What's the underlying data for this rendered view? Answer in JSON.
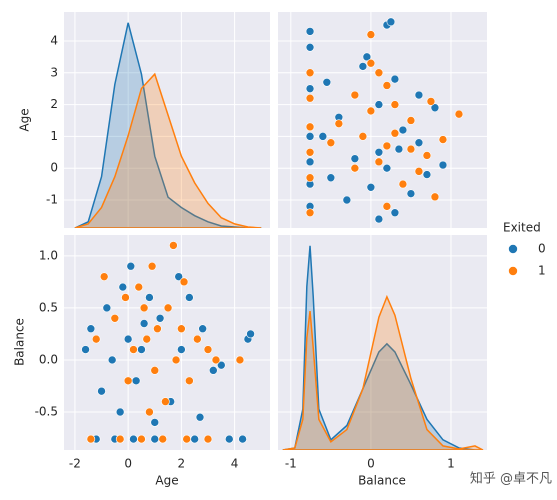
{
  "chart_data": {
    "type": "pairplot",
    "vars": [
      "Age",
      "Balance"
    ],
    "legend_title": "Exited",
    "series": [
      {
        "name": "0",
        "color": "#1f77b4",
        "age": [
          -0.5,
          0.2,
          1.0,
          -1.2,
          2.5,
          3.8,
          4.3,
          0.0,
          -0.8,
          0.5,
          1.2,
          -1.4,
          0.3,
          -0.2,
          2.0,
          2.8,
          3.2,
          4.5,
          -1.0,
          0.8,
          1.6,
          -0.6,
          0.1,
          2.3,
          3.5,
          -1.6,
          1.0,
          0.6,
          -0.3,
          1.9,
          4.6,
          2.7
        ],
        "balance": [
          -0.76,
          -0.76,
          -0.76,
          -0.76,
          -0.76,
          -0.76,
          -0.76,
          0.2,
          0.5,
          0.1,
          0.4,
          0.3,
          -0.2,
          0.7,
          0.1,
          0.3,
          -0.1,
          0.2,
          -0.3,
          0.6,
          -0.4,
          0.0,
          0.9,
          0.6,
          -0.05,
          0.1,
          -0.6,
          0.35,
          -0.5,
          0.8,
          0.25,
          -0.55
        ]
      },
      {
        "name": "1",
        "color": "#ff7f0e",
        "age": [
          -0.3,
          0.5,
          1.3,
          2.2,
          3.0,
          -1.4,
          0.7,
          1.5,
          0.2,
          -0.5,
          2.0,
          1.0,
          0.4,
          1.8,
          2.6,
          -0.9,
          0.9,
          1.4,
          0.0,
          3.0,
          -1.2,
          2.3,
          1.7,
          0.6,
          3.3,
          -0.1,
          1.1,
          4.2,
          0.8,
          2.1
        ],
        "balance": [
          -0.76,
          -0.76,
          -0.76,
          -0.76,
          -0.76,
          -0.76,
          0.2,
          0.5,
          0.1,
          0.4,
          0.3,
          -0.1,
          0.7,
          0.0,
          0.2,
          0.8,
          0.9,
          -0.4,
          -0.2,
          0.1,
          0.2,
          -0.2,
          1.1,
          0.5,
          0.0,
          0.6,
          0.3,
          0.0,
          -0.5,
          0.75
        ]
      }
    ],
    "age_lim": [
      -2.41,
      5.33
    ],
    "age_ylim": [
      -1.88,
      4.91
    ],
    "age_xticks": [
      -2,
      0,
      2,
      4
    ],
    "age_yticks": [
      -1,
      0,
      1,
      2,
      3,
      4
    ],
    "balance_lim": [
      -1.16,
      1.45
    ],
    "balance_ylim": [
      -0.865,
      1.2
    ],
    "balance_xticks": [
      -1,
      0,
      1
    ],
    "balance_yticks": [
      -0.5,
      {
        "value": 0,
        "label": "0.0"
      },
      0.5,
      {
        "value": 1,
        "label": "1.0"
      }
    ],
    "kde": {
      "age": {
        "x": [
          -2,
          -1.5,
          -1,
          -0.5,
          0,
          0.5,
          1,
          1.5,
          2,
          2.5,
          3,
          3.5,
          4,
          4.5,
          5
        ],
        "density": [
          [
            0,
            0.03,
            0.25,
            0.7,
            1.0,
            0.75,
            0.35,
            0.15,
            0.1,
            0.06,
            0.03,
            0.01,
            0.005,
            0,
            0
          ],
          [
            0,
            0.02,
            0.1,
            0.25,
            0.45,
            0.68,
            0.75,
            0.55,
            0.35,
            0.22,
            0.12,
            0.05,
            0.02,
            0.005,
            0
          ]
        ]
      },
      "balance": {
        "x": [
          -1.1,
          -0.95,
          -0.85,
          -0.8,
          -0.76,
          -0.72,
          -0.65,
          -0.5,
          -0.3,
          -0.1,
          0.1,
          0.2,
          0.3,
          0.5,
          0.7,
          0.9,
          1.1,
          1.3,
          1.4
        ],
        "density": [
          [
            0,
            0.01,
            0.2,
            0.8,
            1.0,
            0.75,
            0.2,
            0.05,
            0.12,
            0.3,
            0.48,
            0.52,
            0.48,
            0.32,
            0.15,
            0.05,
            0.01,
            0,
            0
          ],
          [
            0,
            0.01,
            0.15,
            0.55,
            0.68,
            0.5,
            0.15,
            0.04,
            0.1,
            0.3,
            0.65,
            0.75,
            0.66,
            0.35,
            0.1,
            0.02,
            0.005,
            0.02,
            0
          ]
        ]
      }
    }
  },
  "watermark": "知乎 @卓不凡"
}
